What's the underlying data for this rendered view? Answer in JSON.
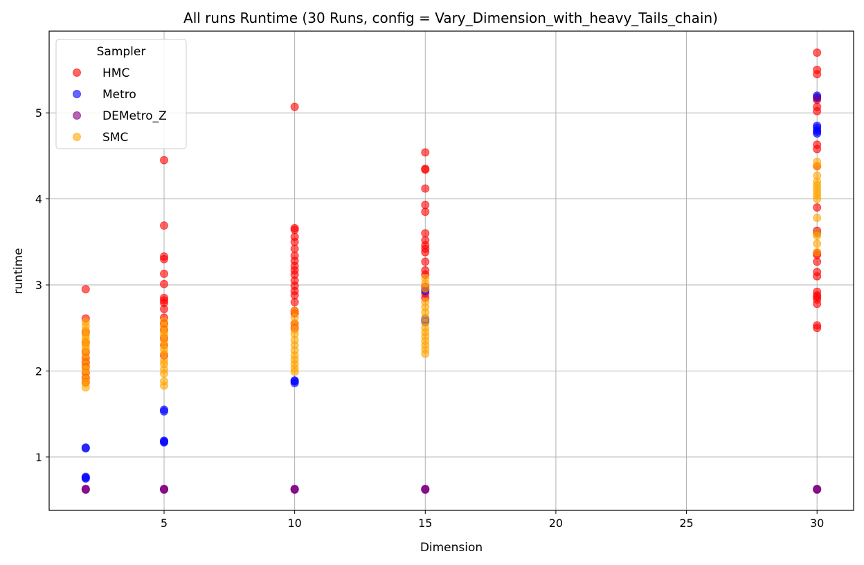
{
  "chart_data": {
    "type": "scatter",
    "title": "All runs Runtime (30 Runs, config = Vary_Dimension_with_heavy_Tails_chain)",
    "xlabel": "Dimension",
    "ylabel": "runtime",
    "xlim": [
      0.6,
      31.4
    ],
    "ylim": [
      0.38,
      5.95
    ],
    "xticks": [
      5,
      10,
      15,
      20,
      25,
      30
    ],
    "yticks": [
      1,
      2,
      3,
      4,
      5
    ],
    "grid": true,
    "legend": {
      "title": "Sampler",
      "position": "top-left"
    },
    "series": [
      {
        "name": "HMC",
        "color": "#ff0000",
        "points": [
          [
            2,
            2.95
          ],
          [
            2,
            2.61
          ],
          [
            2,
            2.45
          ],
          [
            2,
            2.33
          ],
          [
            2,
            2.22
          ],
          [
            2,
            2.15
          ],
          [
            2,
            2.1
          ],
          [
            2,
            2.05
          ],
          [
            2,
            1.98
          ],
          [
            2,
            1.92
          ],
          [
            2,
            1.87
          ],
          [
            5,
            4.45
          ],
          [
            5,
            3.69
          ],
          [
            5,
            3.33
          ],
          [
            5,
            3.3
          ],
          [
            5,
            3.13
          ],
          [
            5,
            3.01
          ],
          [
            5,
            2.85
          ],
          [
            5,
            2.82
          ],
          [
            5,
            2.79
          ],
          [
            5,
            2.72
          ],
          [
            5,
            2.62
          ],
          [
            5,
            2.55
          ],
          [
            5,
            2.48
          ],
          [
            5,
            2.38
          ],
          [
            5,
            2.3
          ],
          [
            5,
            2.18
          ],
          [
            10,
            5.07
          ],
          [
            10,
            3.66
          ],
          [
            10,
            3.64
          ],
          [
            10,
            3.56
          ],
          [
            10,
            3.5
          ],
          [
            10,
            3.42
          ],
          [
            10,
            3.34
          ],
          [
            10,
            3.28
          ],
          [
            10,
            3.22
          ],
          [
            10,
            3.17
          ],
          [
            10,
            3.12
          ],
          [
            10,
            3.05
          ],
          [
            10,
            2.99
          ],
          [
            10,
            2.93
          ],
          [
            10,
            2.88
          ],
          [
            10,
            2.8
          ],
          [
            10,
            2.7
          ],
          [
            10,
            2.67
          ],
          [
            10,
            2.55
          ],
          [
            10,
            2.5
          ],
          [
            15,
            4.54
          ],
          [
            15,
            4.35
          ],
          [
            15,
            4.34
          ],
          [
            15,
            4.12
          ],
          [
            15,
            3.93
          ],
          [
            15,
            3.85
          ],
          [
            15,
            3.6
          ],
          [
            15,
            3.52
          ],
          [
            15,
            3.46
          ],
          [
            15,
            3.42
          ],
          [
            15,
            3.38
          ],
          [
            15,
            3.27
          ],
          [
            15,
            3.17
          ],
          [
            15,
            3.12
          ],
          [
            15,
            2.98
          ],
          [
            15,
            2.9
          ],
          [
            15,
            2.85
          ],
          [
            30,
            5.7
          ],
          [
            30,
            5.5
          ],
          [
            30,
            5.45
          ],
          [
            30,
            5.15
          ],
          [
            30,
            5.07
          ],
          [
            30,
            5.02
          ],
          [
            30,
            4.63
          ],
          [
            30,
            4.58
          ],
          [
            30,
            4.38
          ],
          [
            30,
            3.9
          ],
          [
            30,
            3.63
          ],
          [
            30,
            3.37
          ],
          [
            30,
            3.35
          ],
          [
            30,
            3.27
          ],
          [
            30,
            3.15
          ],
          [
            30,
            3.1
          ],
          [
            30,
            2.92
          ],
          [
            30,
            2.88
          ],
          [
            30,
            2.86
          ],
          [
            30,
            2.83
          ],
          [
            30,
            2.78
          ],
          [
            30,
            2.53
          ],
          [
            30,
            2.5
          ]
        ]
      },
      {
        "name": "Metro",
        "color": "#0000ff",
        "points": [
          [
            2,
            1.11
          ],
          [
            2,
            1.1
          ],
          [
            2,
            0.77
          ],
          [
            2,
            0.76
          ],
          [
            2,
            0.75
          ],
          [
            5,
            1.55
          ],
          [
            5,
            1.53
          ],
          [
            5,
            1.19
          ],
          [
            5,
            1.18
          ],
          [
            5,
            1.17
          ],
          [
            10,
            1.89
          ],
          [
            10,
            1.88
          ],
          [
            10,
            1.86
          ],
          [
            15,
            2.6
          ],
          [
            15,
            2.57
          ],
          [
            15,
            2.93
          ],
          [
            30,
            5.2
          ],
          [
            30,
            5.18
          ],
          [
            30,
            4.85
          ],
          [
            30,
            4.83
          ],
          [
            30,
            4.8
          ],
          [
            30,
            4.78
          ],
          [
            30,
            4.76
          ]
        ]
      },
      {
        "name": "DEMetro_Z",
        "color": "#800080",
        "points": [
          [
            2,
            0.63
          ],
          [
            2,
            0.625
          ],
          [
            2,
            0.62
          ],
          [
            5,
            0.63
          ],
          [
            5,
            0.625
          ],
          [
            5,
            0.62
          ],
          [
            10,
            0.63
          ],
          [
            10,
            0.625
          ],
          [
            10,
            0.62
          ],
          [
            15,
            0.63
          ],
          [
            15,
            0.625
          ],
          [
            15,
            0.62
          ],
          [
            30,
            0.63
          ],
          [
            30,
            0.625
          ],
          [
            30,
            0.62
          ],
          [
            15,
            2.95
          ],
          [
            30,
            5.17
          ],
          [
            30,
            3.6
          ]
        ]
      },
      {
        "name": "SMC",
        "color": "#ffa500",
        "points": [
          [
            2,
            2.57
          ],
          [
            2,
            2.52
          ],
          [
            2,
            2.47
          ],
          [
            2,
            2.42
          ],
          [
            2,
            2.38
          ],
          [
            2,
            2.34
          ],
          [
            2,
            2.3
          ],
          [
            2,
            2.26
          ],
          [
            2,
            2.2
          ],
          [
            2,
            2.14
          ],
          [
            2,
            2.07
          ],
          [
            2,
            2.02
          ],
          [
            2,
            1.97
          ],
          [
            2,
            1.9
          ],
          [
            2,
            1.86
          ],
          [
            2,
            1.81
          ],
          [
            5,
            2.58
          ],
          [
            5,
            2.52
          ],
          [
            5,
            2.46
          ],
          [
            5,
            2.42
          ],
          [
            5,
            2.36
          ],
          [
            5,
            2.3
          ],
          [
            5,
            2.25
          ],
          [
            5,
            2.2
          ],
          [
            5,
            2.12
          ],
          [
            5,
            2.08
          ],
          [
            5,
            2.02
          ],
          [
            5,
            1.97
          ],
          [
            5,
            1.88
          ],
          [
            5,
            1.83
          ],
          [
            10,
            2.7
          ],
          [
            10,
            2.62
          ],
          [
            10,
            2.55
          ],
          [
            10,
            2.48
          ],
          [
            10,
            2.43
          ],
          [
            10,
            2.36
          ],
          [
            10,
            2.3
          ],
          [
            10,
            2.24
          ],
          [
            10,
            2.18
          ],
          [
            10,
            2.13
          ],
          [
            10,
            2.08
          ],
          [
            10,
            2.03
          ],
          [
            10,
            1.99
          ],
          [
            15,
            3.08
          ],
          [
            15,
            3.02
          ],
          [
            15,
            2.96
          ],
          [
            15,
            2.8
          ],
          [
            15,
            2.74
          ],
          [
            15,
            2.68
          ],
          [
            15,
            2.62
          ],
          [
            15,
            2.56
          ],
          [
            15,
            2.5
          ],
          [
            15,
            2.45
          ],
          [
            15,
            2.4
          ],
          [
            15,
            2.35
          ],
          [
            15,
            2.3
          ],
          [
            15,
            2.25
          ],
          [
            15,
            2.2
          ],
          [
            30,
            4.43
          ],
          [
            30,
            4.38
          ],
          [
            30,
            4.27
          ],
          [
            30,
            4.2
          ],
          [
            30,
            4.16
          ],
          [
            30,
            4.12
          ],
          [
            30,
            4.08
          ],
          [
            30,
            4.04
          ],
          [
            30,
            4.0
          ],
          [
            30,
            3.78
          ],
          [
            30,
            3.6
          ],
          [
            30,
            3.57
          ],
          [
            30,
            3.48
          ],
          [
            30,
            3.38
          ]
        ]
      }
    ]
  }
}
